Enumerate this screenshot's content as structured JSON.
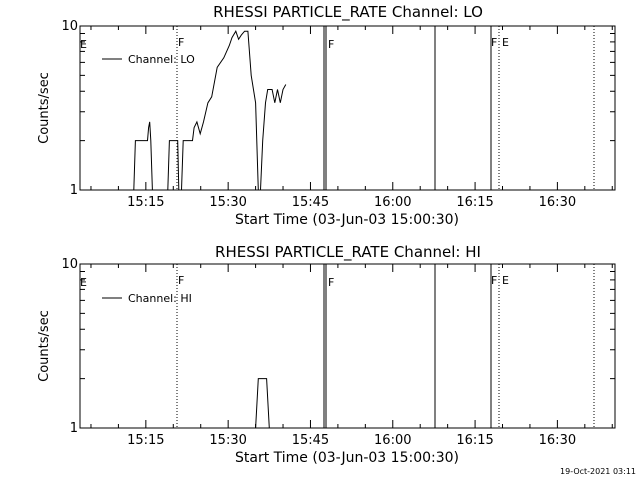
{
  "footer_timestamp": "19-Oct-2021 03:11",
  "chart_data": [
    {
      "type": "line",
      "title": "RHESSI PARTICLE_RATE Channel: LO",
      "xlabel": "Start Time (03-Jun-03 15:00:30)",
      "ylabel": "Counts/sec",
      "yscale": "log",
      "xlim": [
        2.5,
        40.5
      ],
      "ylim": [
        1,
        10
      ],
      "x_ticks": [
        {
          "value": 15,
          "label": "15:15"
        },
        {
          "value": 30,
          "label": "15:30"
        },
        {
          "value": 45,
          "label": "15:45"
        },
        {
          "value": 60,
          "label": "16:00"
        },
        {
          "value": 75,
          "label": "16:15"
        },
        {
          "value": 90,
          "label": "16:30"
        }
      ],
      "y_ticks": [
        {
          "value": 1,
          "label": "1"
        },
        {
          "value": 10,
          "label": "10"
        }
      ],
      "legend": {
        "position": "top-left",
        "entries": [
          "Channel: LO"
        ]
      },
      "series": [
        {
          "name": "Channel: LO",
          "points": [
            [
              12.8,
              1.0
            ],
            [
              13.1,
              2.0
            ],
            [
              15.3,
              2.0
            ],
            [
              15.5,
              2.4
            ],
            [
              15.7,
              2.6
            ],
            [
              15.9,
              2.0
            ],
            [
              16.2,
              1.0
            ],
            [
              19.0,
              1.0
            ],
            [
              19.3,
              2.0
            ],
            [
              20.8,
              2.0
            ],
            [
              21.0,
              1.0
            ],
            [
              21.5,
              1.0
            ],
            [
              21.8,
              2.0
            ],
            [
              23.5,
              2.0
            ],
            [
              23.8,
              2.4
            ],
            [
              24.3,
              2.6
            ],
            [
              24.9,
              2.2
            ],
            [
              25.5,
              2.6
            ],
            [
              26.3,
              3.4
            ],
            [
              27.0,
              3.7
            ],
            [
              28.0,
              5.6
            ],
            [
              29.2,
              6.4
            ],
            [
              30.2,
              7.6
            ],
            [
              30.7,
              8.5
            ],
            [
              31.4,
              9.3
            ],
            [
              31.9,
              8.3
            ],
            [
              32.4,
              8.8
            ],
            [
              33.0,
              9.3
            ],
            [
              33.6,
              9.3
            ],
            [
              34.2,
              5.0
            ],
            [
              35.0,
              3.4
            ],
            [
              35.5,
              1.0
            ],
            [
              35.9,
              1.0
            ],
            [
              36.3,
              2.0
            ],
            [
              36.8,
              3.4
            ],
            [
              37.2,
              4.1
            ],
            [
              38.0,
              4.1
            ],
            [
              38.5,
              3.4
            ],
            [
              39.0,
              4.1
            ],
            [
              39.5,
              3.4
            ],
            [
              40.0,
              4.1
            ],
            [
              40.5,
              4.4
            ]
          ]
        }
      ],
      "vertical_markers": [
        {
          "x": 15.0,
          "label": "E"
        },
        {
          "x": 16.0,
          "label": "F"
        },
        {
          "x": 39.5,
          "label": "F"
        },
        {
          "x": 40.5,
          "label": ""
        }
      ]
    },
    {
      "type": "line",
      "title": "RHESSI PARTICLE_RATE Channel: HI",
      "xlabel": "Start Time (03-Jun-03 15:00:30)",
      "ylabel": "Counts/sec",
      "yscale": "log",
      "xlim": [
        2.5,
        40.5
      ],
      "ylim": [
        1,
        10
      ],
      "x_ticks": [
        {
          "value": 15,
          "label": "15:15"
        },
        {
          "value": 30,
          "label": "15:30"
        },
        {
          "value": 45,
          "label": "15:45"
        },
        {
          "value": 60,
          "label": "16:00"
        },
        {
          "value": 75,
          "label": "16:15"
        },
        {
          "value": 90,
          "label": "16:30"
        }
      ],
      "y_ticks": [
        {
          "value": 1,
          "label": "1"
        },
        {
          "value": 10,
          "label": "10"
        }
      ],
      "legend": {
        "position": "top-left",
        "entries": [
          "Channel: HI"
        ]
      },
      "series": [
        {
          "name": "Channel: HI",
          "points": [
            [
              35.0,
              1.0
            ],
            [
              35.5,
              2.0
            ],
            [
              37.0,
              2.0
            ],
            [
              37.5,
              1.0
            ]
          ]
        }
      ],
      "vertical_markers": [
        {
          "x": 15.0,
          "label": "E"
        },
        {
          "x": 16.0,
          "label": "F"
        },
        {
          "x": 39.5,
          "label": "F"
        },
        {
          "x": 40.5,
          "label": ""
        }
      ]
    }
  ]
}
